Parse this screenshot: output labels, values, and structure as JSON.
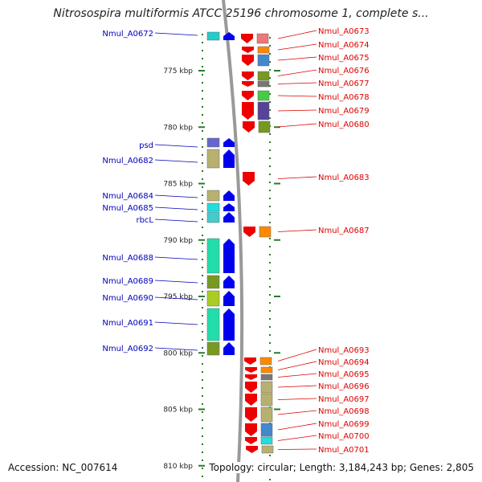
{
  "title": "Nitrosospira multiformis ATCC 25196 chromosome 1, complete s...",
  "footer": {
    "accession": "Accession: NC_007614",
    "summary": "Topology: circular; Length: 3,184,243 bp; Genes: 2,805"
  },
  "ruler": [
    {
      "label": "775 kbp",
      "kbp": 775
    },
    {
      "label": "780 kbp",
      "kbp": 780
    },
    {
      "label": "785 kbp",
      "kbp": 785
    },
    {
      "label": "790 kbp",
      "kbp": 790
    },
    {
      "label": "795 kbp",
      "kbp": 795
    },
    {
      "label": "800 kbp",
      "kbp": 800
    },
    {
      "label": "805 kbp",
      "kbp": 805
    },
    {
      "label": "810 kbp",
      "kbp": 810
    }
  ],
  "colors": {
    "forward_strand": "#0000ee",
    "reverse_strand": "#ee0000",
    "forward_label": "#0000bb",
    "reverse_label": "#dd0000",
    "tick": "#2a7a2a",
    "backbone": "#999999"
  },
  "forward_genes": [
    {
      "label": "Nmul_A0672",
      "color": "#22cccc"
    },
    {
      "label": "psd",
      "color": "#6666cc"
    },
    {
      "label": "Nmul_A0682",
      "color": "#b8b070"
    },
    {
      "label": "Nmul_A0684",
      "color": "#b8b070"
    },
    {
      "label": "Nmul_A0685",
      "color": "#22dddd"
    },
    {
      "label": "rbcL",
      "color": "#44cccc"
    },
    {
      "label": "Nmul_A0688",
      "color": "#22ddaa"
    },
    {
      "label": "Nmul_A0689",
      "color": "#779922"
    },
    {
      "label": "Nmul_A0690",
      "color": "#aacc22"
    },
    {
      "label": "Nmul_A0691",
      "color": "#22ddaa"
    },
    {
      "label": "Nmul_A0692",
      "color": "#779922"
    }
  ],
  "reverse_genes": [
    {
      "label": "Nmul_A0673",
      "color": "#ee7777"
    },
    {
      "label": "Nmul_A0674",
      "color": "#ff8800"
    },
    {
      "label": "Nmul_A0675",
      "color": "#4488cc"
    },
    {
      "label": "Nmul_A0676",
      "color": "#779922"
    },
    {
      "label": "Nmul_A0677",
      "color": "#777777"
    },
    {
      "label": "Nmul_A0678",
      "color": "#44cc44"
    },
    {
      "label": "Nmul_A0679",
      "color": "#554499"
    },
    {
      "label": "Nmul_A0680",
      "color": "#779922"
    },
    {
      "label": "Nmul_A0683",
      "color": ""
    },
    {
      "label": "Nmul_A0687",
      "color": "#ff8800"
    },
    {
      "label": "Nmul_A0693",
      "color": "#ff8800"
    },
    {
      "label": "Nmul_A0694",
      "color": "#ff8800"
    },
    {
      "label": "Nmul_A0695",
      "color": "#777777"
    },
    {
      "label": "Nmul_A0696",
      "color": "#b8b070"
    },
    {
      "label": "Nmul_A0697",
      "color": "#b8b070"
    },
    {
      "label": "Nmul_A0698",
      "color": "#b8b070"
    },
    {
      "label": "Nmul_A0699",
      "color": "#4488cc"
    },
    {
      "label": "Nmul_A0700",
      "color": "#22dddd"
    },
    {
      "label": "Nmul_A0701",
      "color": "#b8b070"
    }
  ]
}
